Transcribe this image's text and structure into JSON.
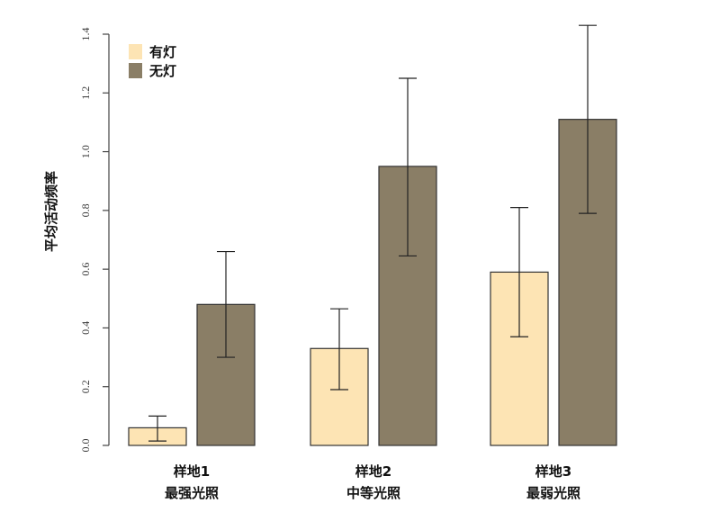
{
  "chart_data": {
    "type": "bar",
    "title": "",
    "ylabel": "平均活动频率",
    "xlabel": "",
    "ylim": [
      0,
      1.4
    ],
    "yticks": [
      "0.0",
      "0.2",
      "0.4",
      "0.6",
      "0.8",
      "1.0",
      "1.2",
      "1.4"
    ],
    "categories": [
      {
        "line1": "样地1",
        "line2": "最强光照"
      },
      {
        "line1": "样地2",
        "line2": "中等光照"
      },
      {
        "line1": "样地3",
        "line2": "最弱光照"
      }
    ],
    "series": [
      {
        "name": "有灯",
        "color": "#fde4b4",
        "values": [
          0.06,
          0.33,
          0.59
        ],
        "err_low": [
          0.015,
          0.19,
          0.37
        ],
        "err_high": [
          0.1,
          0.465,
          0.81
        ]
      },
      {
        "name": "无灯",
        "color": "#8a7e66",
        "values": [
          0.48,
          0.95,
          1.11
        ],
        "err_low": [
          0.3,
          0.645,
          0.79
        ],
        "err_high": [
          0.66,
          1.25,
          1.43
        ]
      }
    ],
    "legend_position": "top-left",
    "grid": false
  }
}
